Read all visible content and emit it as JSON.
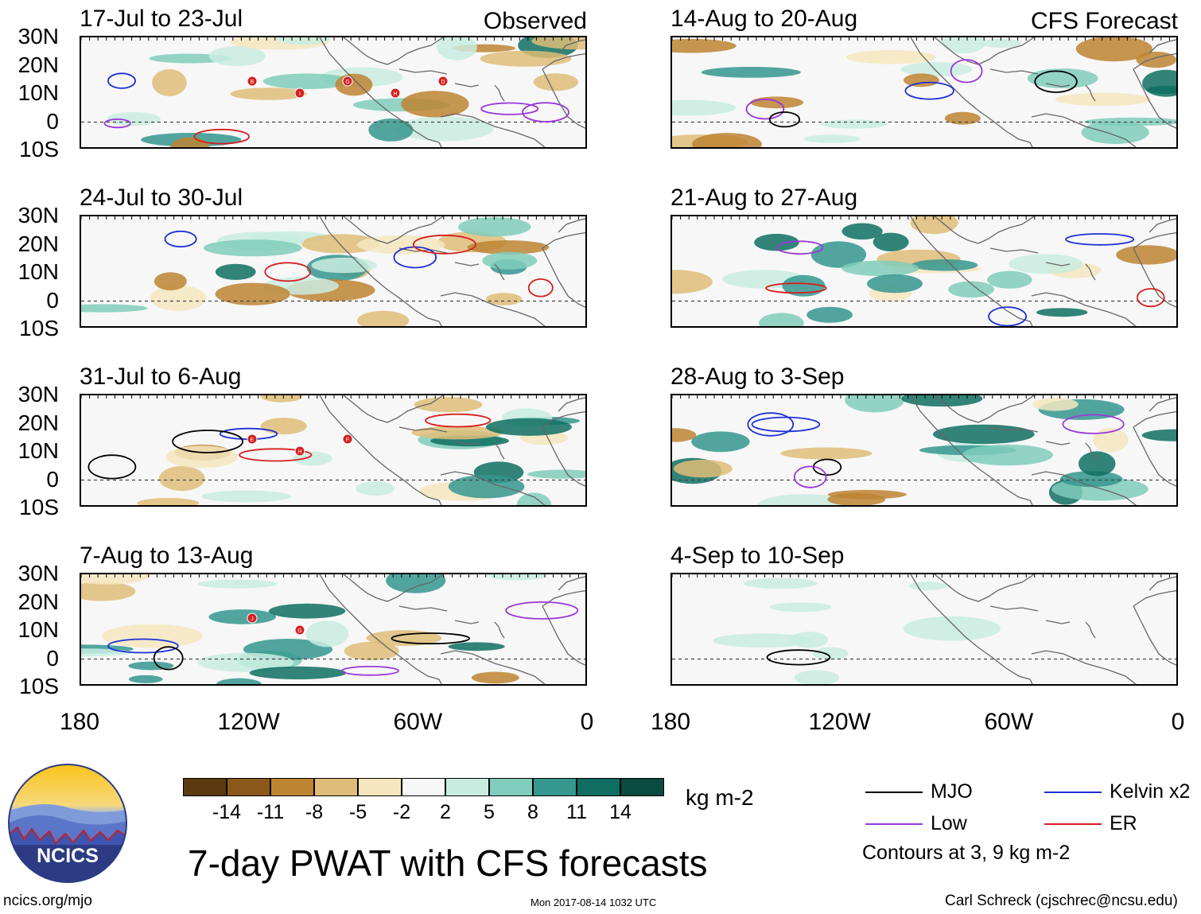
{
  "chart_data": {
    "type": "map",
    "title": "7-day PWAT with CFS forecasts",
    "units": "kg m-2",
    "lat_ticks": [
      "30N",
      "20N",
      "10N",
      "0",
      "10S"
    ],
    "lon_ticks": [
      "180",
      "120W",
      "60W",
      "0"
    ],
    "lat_range": [
      -10,
      30
    ],
    "lon_range": [
      -180,
      0
    ],
    "observed_label": "Observed",
    "forecast_label": "CFS Forecast",
    "panels": [
      {
        "title": "17-Jul to 23-Jul",
        "kind": "observed",
        "storms": [
          "B",
          "I",
          "G",
          "H",
          "D"
        ]
      },
      {
        "title": "24-Jul to 30-Jul",
        "kind": "observed",
        "storms": []
      },
      {
        "title": "31-Jul to 6-Aug",
        "kind": "observed",
        "storms": [
          "E",
          "H",
          "F"
        ]
      },
      {
        "title": "7-Aug to 13-Aug",
        "kind": "observed",
        "storms": [
          "J",
          "G"
        ]
      },
      {
        "title": "14-Aug to 20-Aug",
        "kind": "forecast",
        "storms": []
      },
      {
        "title": "21-Aug to 27-Aug",
        "kind": "forecast",
        "storms": []
      },
      {
        "title": "28-Aug to 3-Sep",
        "kind": "forecast",
        "storms": []
      },
      {
        "title": "4-Sep to 10-Sep",
        "kind": "forecast",
        "storms": []
      }
    ],
    "colorbar": {
      "labels": [
        "-14",
        "-11",
        "-8",
        "-5",
        "-2",
        "2",
        "5",
        "8",
        "11",
        "14"
      ],
      "colors": [
        "#5a3a0e",
        "#8a5818",
        "#bd8432",
        "#dfbd78",
        "#f5e6bf",
        "#f7f7f7",
        "#c9ece1",
        "#80cdbb",
        "#35978f",
        "#0f6e61",
        "#0a4a40"
      ]
    },
    "legend": {
      "items": [
        {
          "label": "MJO",
          "color": "#000000"
        },
        {
          "label": "Kelvin x2",
          "color": "#1f2fd6"
        },
        {
          "label": "Low",
          "color": "#9a38d9"
        },
        {
          "label": "ER",
          "color": "#d61f1f"
        }
      ],
      "note": "Contours at 3, 9 kg m-2"
    }
  },
  "logo": {
    "text": "NCICS"
  },
  "footer": {
    "url": "ncics.org/mjo",
    "timestamp": "Mon 2017-08-14 1032 UTC",
    "author": "Carl Schreck (cjschrec@ncsu.edu)"
  }
}
